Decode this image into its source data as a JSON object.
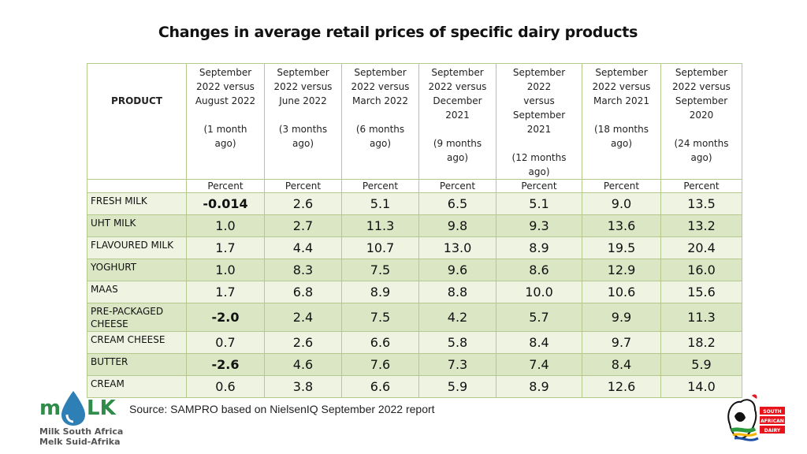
{
  "title": "Changes in average retail prices of specific dairy products",
  "table": {
    "product_header": "PRODUCT",
    "columns": [
      {
        "label": "September\n2022 versus\nAugust 2022\n\n(1 month\nago)"
      },
      {
        "label": "September\n2022 versus\nJune 2022\n\n(3 months\nago)"
      },
      {
        "label": "September\n2022 versus\nMarch 2022\n\n(6 months\nago)"
      },
      {
        "label": "September\n2022 versus\nDecember\n2021\n\n(9 months\nago)"
      },
      {
        "label": "September\n2022\nversus\nSeptember\n2021\n\n(12 months\nago)"
      },
      {
        "label": "September\n2022 versus\nMarch 2021\n\n(18 months\nago)"
      },
      {
        "label": "September\n2022 versus\nSeptember\n2020\n\n(24 months\nago)"
      }
    ],
    "unit_label": "Percent",
    "rows": [
      {
        "product": "FRESH MILK",
        "values": [
          "-0.014",
          "2.6",
          "5.1",
          "6.5",
          "5.1",
          "9.0",
          "13.5"
        ]
      },
      {
        "product": "UHT MILK",
        "values": [
          "1.0",
          "2.7",
          "11.3",
          "9.8",
          "9.3",
          "13.6",
          "13.2"
        ]
      },
      {
        "product": "FLAVOURED MILK",
        "values": [
          "1.7",
          "4.4",
          "10.7",
          "13.0",
          "8.9",
          "19.5",
          "20.4"
        ]
      },
      {
        "product": "YOGHURT",
        "values": [
          "1.0",
          "8.3",
          "7.5",
          "9.6",
          "8.6",
          "12.9",
          "16.0"
        ]
      },
      {
        "product": "MAAS",
        "values": [
          "1.7",
          "6.8",
          "8.9",
          "8.8",
          "10.0",
          "10.6",
          "15.6"
        ]
      },
      {
        "product": "PRE-PACKAGED CHEESE",
        "values": [
          "-2.0",
          "2.4",
          "7.5",
          "4.2",
          "5.7",
          "9.9",
          "11.3"
        ]
      },
      {
        "product": "CREAM CHEESE",
        "values": [
          "0.7",
          "2.6",
          "6.6",
          "5.8",
          "8.4",
          "9.7",
          "18.2"
        ]
      },
      {
        "product": "BUTTER",
        "values": [
          "-2.6",
          "4.6",
          "7.6",
          "7.3",
          "7.4",
          "8.4",
          "5.9"
        ]
      },
      {
        "product": "CREAM",
        "values": [
          "0.6",
          "3.8",
          "6.6",
          "5.9",
          "8.9",
          "12.6",
          "14.0"
        ]
      }
    ]
  },
  "source": "Source: SAMPRO based on NielsenIQ September 2022 report",
  "logo_left": {
    "icon": "milk-drop-logo",
    "line1": "Milk South Africa",
    "line2": "Melk Suid-Afrika"
  },
  "logo_right": {
    "icon": "south-african-dairy-logo",
    "line1": "SOUTH",
    "line2": "AFRICAN",
    "line3": "DAIRY"
  },
  "colors": {
    "negative": "#e8141b",
    "border": "#b5c98d",
    "row_light": "#eef3e2",
    "row_dark": "#dbe6c4"
  }
}
